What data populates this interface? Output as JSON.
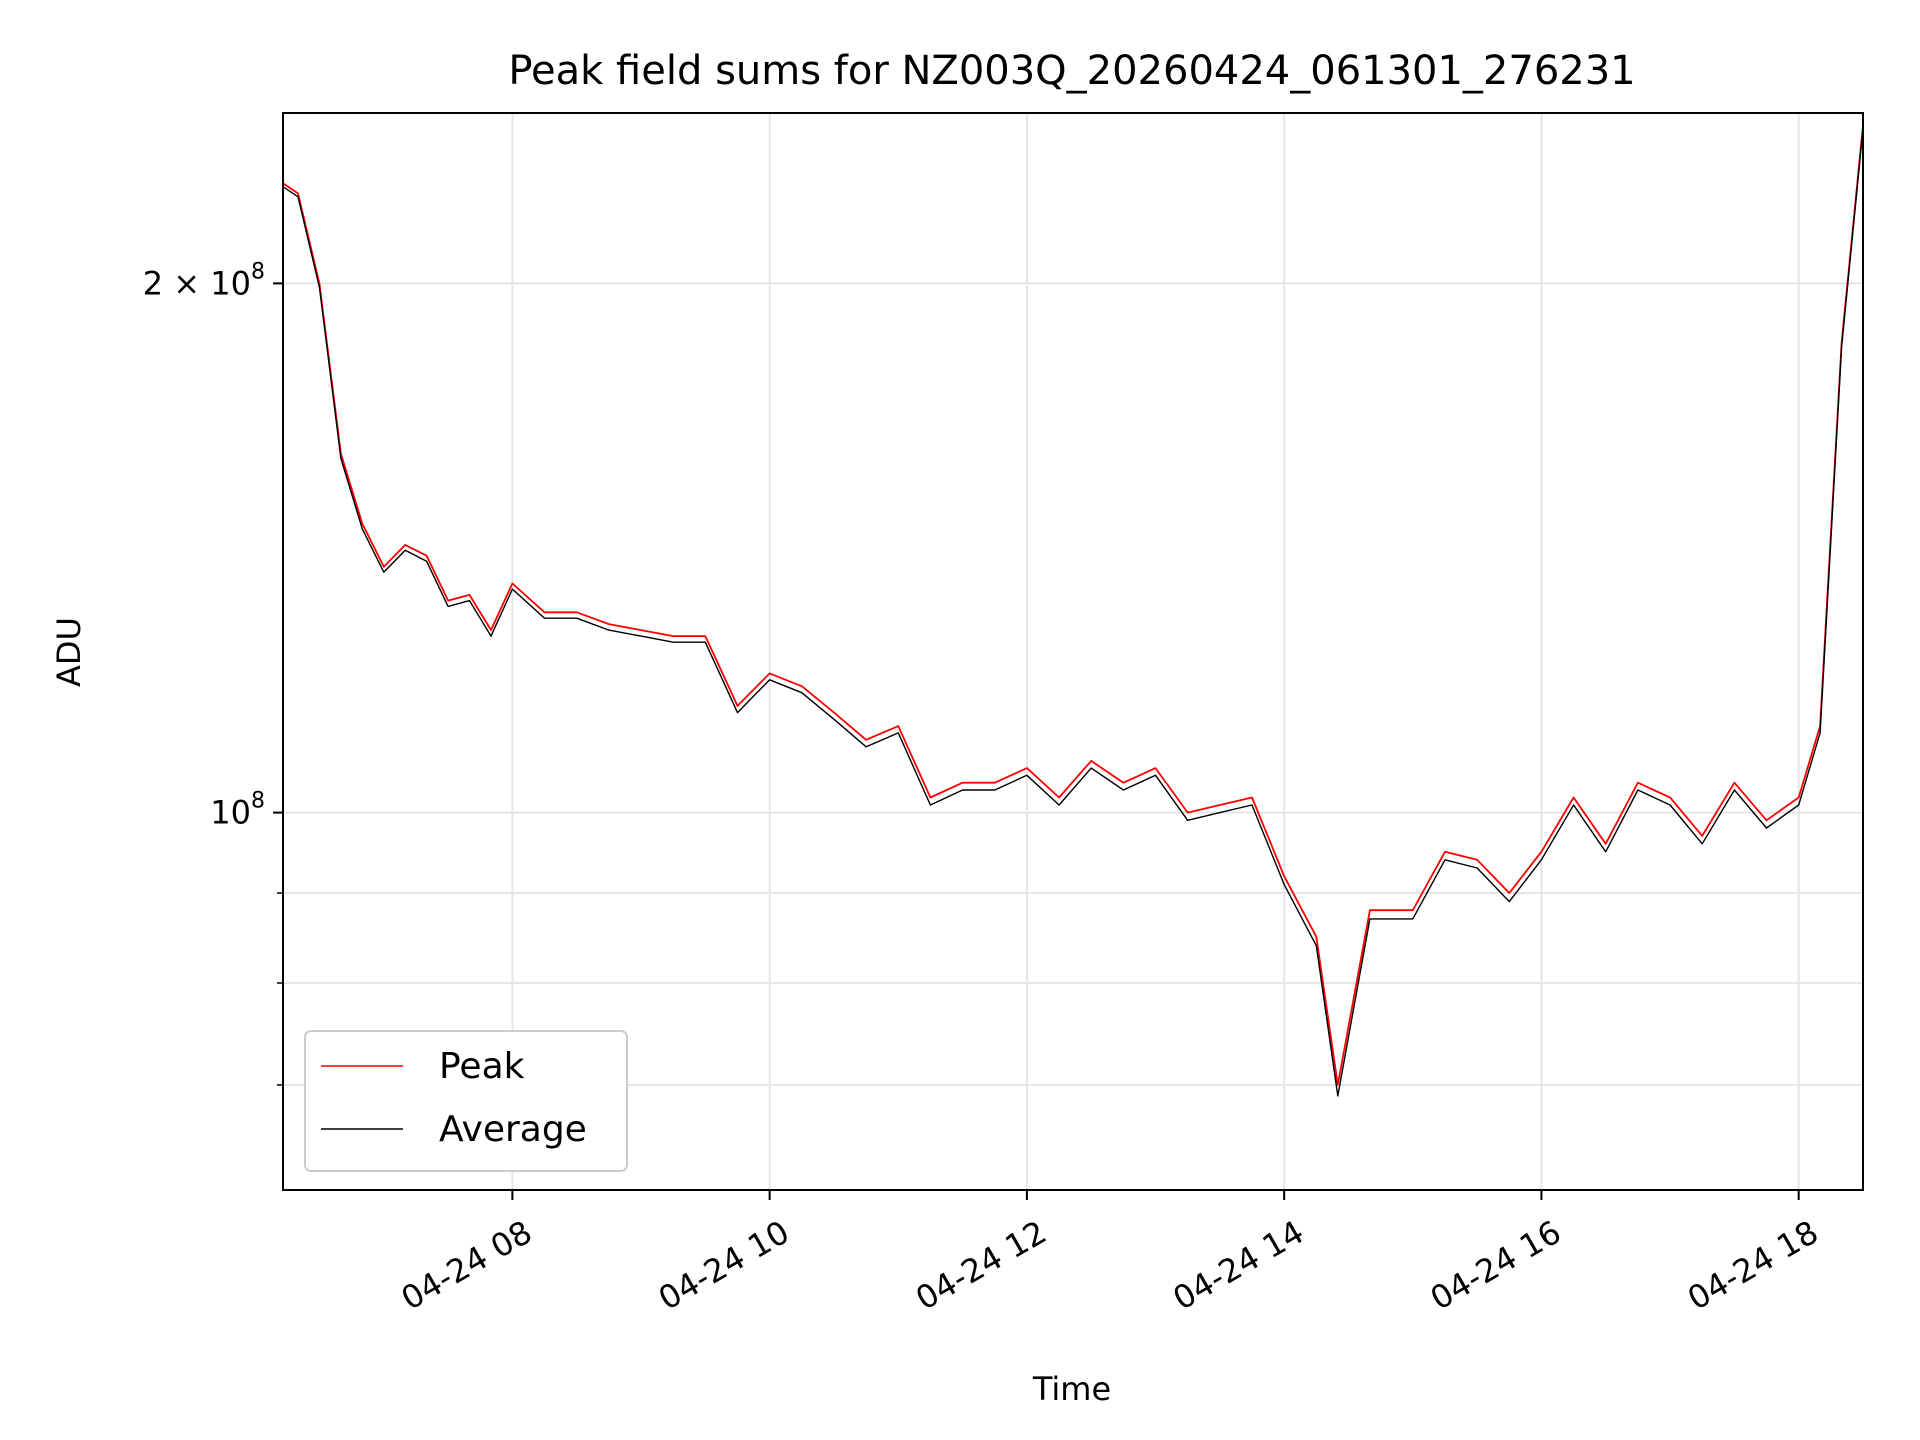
{
  "chart_data": {
    "type": "line",
    "title": "Peak field sums for NZ003Q_20260424_061301_276231",
    "xlabel": "Time",
    "ylabel": "ADU",
    "y_scale": "log",
    "grid": true,
    "legend_position": "lower-left",
    "xlim": [
      "2026-04-24T06:13",
      "2026-04-24T18:30"
    ],
    "ylim": [
      61000000,
      250000000
    ],
    "x_ticks": [
      {
        "value": "2026-04-24T08:00",
        "label": "04-24 08"
      },
      {
        "value": "2026-04-24T10:00",
        "label": "04-24 10"
      },
      {
        "value": "2026-04-24T12:00",
        "label": "04-24 12"
      },
      {
        "value": "2026-04-24T14:00",
        "label": "04-24 14"
      },
      {
        "value": "2026-04-24T16:00",
        "label": "04-24 16"
      },
      {
        "value": "2026-04-24T18:00",
        "label": "04-24 18"
      }
    ],
    "y_ticks": [
      {
        "value": 100000000,
        "label_base": "10",
        "label_exp": "8",
        "label_prefix": ""
      },
      {
        "value": 200000000,
        "label_base": "10",
        "label_exp": "8",
        "label_prefix": "2 × "
      }
    ],
    "y_minor_ticks": [
      70000000,
      80000000,
      90000000
    ],
    "x": [
      "2026-04-24T06:13",
      "2026-04-24T06:20",
      "2026-04-24T06:30",
      "2026-04-24T06:40",
      "2026-04-24T06:50",
      "2026-04-24T07:00",
      "2026-04-24T07:10",
      "2026-04-24T07:20",
      "2026-04-24T07:30",
      "2026-04-24T07:40",
      "2026-04-24T07:50",
      "2026-04-24T08:00",
      "2026-04-24T08:15",
      "2026-04-24T08:30",
      "2026-04-24T08:45",
      "2026-04-24T09:00",
      "2026-04-24T09:15",
      "2026-04-24T09:30",
      "2026-04-24T09:45",
      "2026-04-24T10:00",
      "2026-04-24T10:15",
      "2026-04-24T10:30",
      "2026-04-24T10:45",
      "2026-04-24T11:00",
      "2026-04-24T11:15",
      "2026-04-24T11:30",
      "2026-04-24T11:45",
      "2026-04-24T12:00",
      "2026-04-24T12:15",
      "2026-04-24T12:30",
      "2026-04-24T12:45",
      "2026-04-24T13:00",
      "2026-04-24T13:15",
      "2026-04-24T13:30",
      "2026-04-24T13:45",
      "2026-04-24T14:00",
      "2026-04-24T14:15",
      "2026-04-24T14:25",
      "2026-04-24T14:40",
      "2026-04-24T15:00",
      "2026-04-24T15:15",
      "2026-04-24T15:30",
      "2026-04-24T15:45",
      "2026-04-24T16:00",
      "2026-04-24T16:15",
      "2026-04-24T16:30",
      "2026-04-24T16:45",
      "2026-04-24T17:00",
      "2026-04-24T17:15",
      "2026-04-24T17:30",
      "2026-04-24T17:45",
      "2026-04-24T18:00",
      "2026-04-24T18:10",
      "2026-04-24T18:20",
      "2026-04-24T18:30"
    ],
    "series": [
      {
        "name": "Peak",
        "color": "#ff0000",
        "values": [
          228000000,
          225000000,
          200000000,
          160000000,
          146000000,
          138000000,
          142000000,
          140000000,
          132000000,
          133000000,
          127000000,
          135000000,
          130000000,
          130000000,
          128000000,
          127000000,
          126000000,
          126000000,
          115000000,
          120000000,
          118000000,
          114000000,
          110000000,
          112000000,
          102000000,
          104000000,
          104000000,
          106000000,
          102000000,
          107000000,
          104000000,
          106000000,
          100000000,
          101000000,
          102000000,
          92000000,
          85000000,
          70000000,
          88000000,
          88000000,
          95000000,
          94000000,
          90000000,
          95000000,
          102000000,
          96000000,
          104000000,
          102000000,
          97000000,
          104000000,
          99000000,
          102000000,
          112000000,
          185000000,
          246000000
        ]
      },
      {
        "name": "Average",
        "color": "#000000",
        "values": [
          227000000,
          224000000,
          199000000,
          159000000,
          145000000,
          137000000,
          141000000,
          139000000,
          131000000,
          132000000,
          126000000,
          134000000,
          129000000,
          129000000,
          127000000,
          126000000,
          125000000,
          125000000,
          114000000,
          119000000,
          117000000,
          113000000,
          109000000,
          111000000,
          101000000,
          103000000,
          103000000,
          105000000,
          101000000,
          106000000,
          103000000,
          105000000,
          99000000,
          100000000,
          101000000,
          91000000,
          84000000,
          69000000,
          87000000,
          87000000,
          94000000,
          93000000,
          89000000,
          94000000,
          101000000,
          95000000,
          103000000,
          101000000,
          96000000,
          103000000,
          98000000,
          101000000,
          111000000,
          184000000,
          245000000
        ]
      }
    ]
  }
}
